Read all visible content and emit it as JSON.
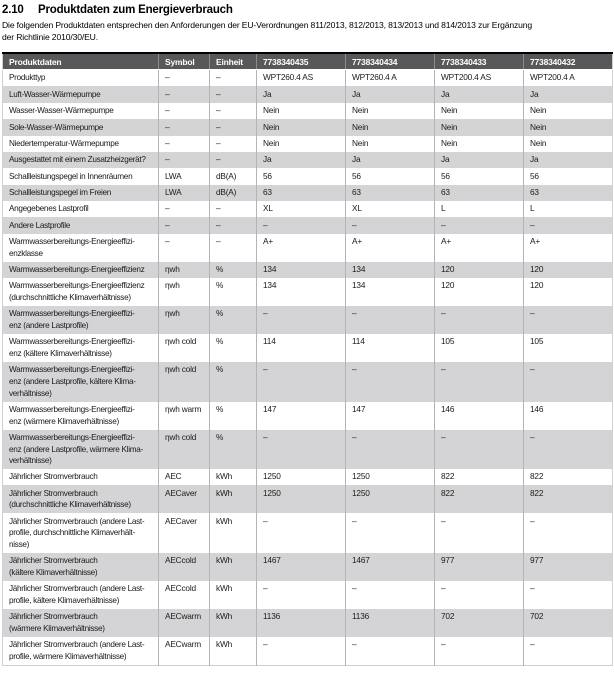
{
  "heading": {
    "number": "2.10",
    "title": "Produktdaten zum Energieverbrauch",
    "intro": "Die folgenden Produktdaten entsprechen den Anforderungen der EU-Verordnungen 811/2013, 812/2013, 813/2013 und 814/2013 zur Ergänzung\nder Richtlinie 2010/30/EU."
  },
  "colors": {
    "header_bg": "#58585b",
    "header_text": "#ffffff",
    "row_alt_bg": "#d4d4d6",
    "table_top_border": "#000000",
    "cell_divider": "#b4b4b6"
  },
  "table": {
    "columns": [
      "Produktdaten",
      "Symbol",
      "Einheit",
      "7738340435",
      "7738340434",
      "7738340433",
      "7738340432"
    ],
    "rows": [
      {
        "label": "Produkttyp",
        "symbol": "–",
        "unit": "–",
        "values": [
          "WPT260.4 AS",
          "WPT260.4 A",
          "WPT200.4 AS",
          "WPT200.4 A"
        ]
      },
      {
        "label": "Luft-Wasser-Wärmepumpe",
        "symbol": "–",
        "unit": "–",
        "values": [
          "Ja",
          "Ja",
          "Ja",
          "Ja"
        ]
      },
      {
        "label": "Wasser-Wasser-Wärmepumpe",
        "symbol": "–",
        "unit": "–",
        "values": [
          "Nein",
          "Nein",
          "Nein",
          "Nein"
        ]
      },
      {
        "label": "Sole-Wasser-Wärmepumpe",
        "symbol": "–",
        "unit": "–",
        "values": [
          "Nein",
          "Nein",
          "Nein",
          "Nein"
        ]
      },
      {
        "label": "Niedertemperatur-Wärmepumpe",
        "symbol": "–",
        "unit": "–",
        "values": [
          "Nein",
          "Nein",
          "Nein",
          "Nein"
        ]
      },
      {
        "label": "Ausgestattet mit einem Zusatzheizgerät?",
        "symbol": "–",
        "unit": "–",
        "values": [
          "Ja",
          "Ja",
          "Ja",
          "Ja"
        ]
      },
      {
        "label": "Schallleistungspegel in Innenräumen",
        "symbol": "LWA",
        "unit": "dB(A)",
        "values": [
          "56",
          "56",
          "56",
          "56"
        ]
      },
      {
        "label": "Schallleistungspegel im Freien",
        "symbol": "LWA",
        "unit": "dB(A)",
        "values": [
          "63",
          "63",
          "63",
          "63"
        ]
      },
      {
        "label": "Angegebenes Lastprofil",
        "symbol": "–",
        "unit": "–",
        "values": [
          "XL",
          "XL",
          "L",
          "L"
        ]
      },
      {
        "label": "Andere Lastprofile",
        "symbol": "–",
        "unit": "–",
        "values": [
          "–",
          "–",
          "–",
          "–"
        ]
      },
      {
        "label": "Warmwasserbereitungs-Energieeffizi-\nenzklasse",
        "symbol": "–",
        "unit": "–",
        "values": [
          "A+",
          "A+",
          "A+",
          "A+"
        ]
      },
      {
        "label": "Warmwasserbereitungs-Energieeffizienz",
        "symbol": "ηwh",
        "unit": "%",
        "values": [
          "134",
          "134",
          "120",
          "120"
        ]
      },
      {
        "label": "Warmwasserbereitungs-Energieeffizienz\n(durchschnittliche Klimaverhältnisse)",
        "symbol": "ηwh",
        "unit": "%",
        "values": [
          "134",
          "134",
          "120",
          "120"
        ]
      },
      {
        "label": "Warmwasserbereitungs-Energieeffizi-\nenz (andere Lastprofile)",
        "symbol": "ηwh",
        "unit": "%",
        "values": [
          "–",
          "–",
          "–",
          "–"
        ]
      },
      {
        "label": "Warmwasserbereitungs-Energieeffizi-\nenz (kältere Klimaverhältnisse)",
        "symbol": "ηwh cold",
        "unit": "%",
        "values": [
          "114",
          "114",
          "105",
          "105"
        ]
      },
      {
        "label": "Warmwasserbereitungs-Energieeffizi-\nenz (andere Lastprofile, kältere Klima-\nverhältnisse)",
        "symbol": "ηwh cold",
        "unit": "%",
        "values": [
          "–",
          "–",
          "–",
          "–"
        ]
      },
      {
        "label": "Warmwasserbereitungs-Energieeffizi-\nenz (wärmere Klimaverhältnisse)",
        "symbol": "ηwh warm",
        "unit": "%",
        "values": [
          "147",
          "147",
          "146",
          "146"
        ]
      },
      {
        "label": "Warmwasserbereitungs-Energieeffizi-\nenz (andere Lastprofile, wärmere Klima-\nverhältnisse)",
        "symbol": "ηwh cold",
        "unit": "%",
        "values": [
          "–",
          "–",
          "–",
          "–"
        ]
      },
      {
        "label": "Jährlicher Stromverbrauch",
        "symbol": "AEC",
        "unit": "kWh",
        "values": [
          "1250",
          "1250",
          "822",
          "822"
        ]
      },
      {
        "label": "Jährlicher Stromverbrauch\n(durchschnittliche Klimaverhältnisse)",
        "symbol": "AECaver",
        "unit": "kWh",
        "values": [
          "1250",
          "1250",
          "822",
          "822"
        ]
      },
      {
        "label": "Jährlicher Stromverbrauch (andere Last-\nprofile, durchschnittliche Klimaverhält-\nnisse)",
        "symbol": "AECaver",
        "unit": "kWh",
        "values": [
          "–",
          "–",
          "–",
          "–"
        ]
      },
      {
        "label": "Jährlicher Stromverbrauch\n(kältere Klimaverhältnisse)",
        "symbol": "AECcold",
        "unit": "kWh",
        "values": [
          "1467",
          "1467",
          "977",
          "977"
        ]
      },
      {
        "label": "Jährlicher Stromverbrauch (andere Last-\nprofile, kältere Klimaverhältnisse)",
        "symbol": "AECcold",
        "unit": "kWh",
        "values": [
          "–",
          "–",
          "–",
          "–"
        ]
      },
      {
        "label": "Jährlicher Stromverbrauch\n(wärmere Klimaverhältnisse)",
        "symbol": "AECwarm",
        "unit": "kWh",
        "values": [
          "1136",
          "1136",
          "702",
          "702"
        ]
      },
      {
        "label": "Jährlicher Stromverbrauch (andere Last-\nprofile, wärmere Klimaverhältnisse)",
        "symbol": "AECwarm",
        "unit": "kWh",
        "values": [
          "–",
          "–",
          "–",
          "–"
        ]
      }
    ]
  }
}
